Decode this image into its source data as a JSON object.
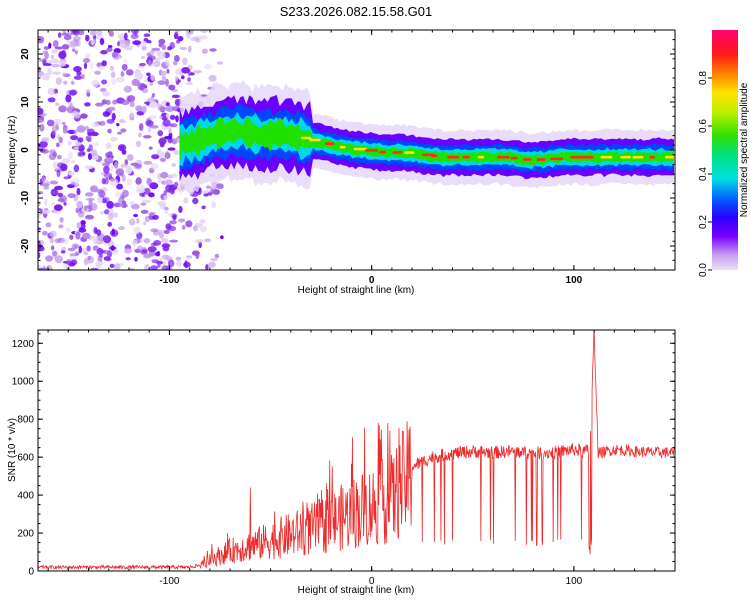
{
  "title": "S233.2026.082.15.58.G01",
  "colors": {
    "snr_line": "#ee2a2a",
    "frame": "#000000",
    "background": "#ffffff"
  },
  "chart_data": [
    {
      "type": "heatmap",
      "name": "spectrogram",
      "xlabel": "Height of straight line (km)",
      "ylabel": "Frequency (Hz)",
      "xlim": [
        -165,
        150
      ],
      "ylim": [
        -25,
        25
      ],
      "x_ticks": [
        -100,
        0,
        100
      ],
      "y_ticks": [
        -20,
        -10,
        0,
        10,
        20
      ],
      "colorbar": {
        "label": "Normalized spectral amplitude",
        "range": [
          0.0,
          1.0
        ],
        "ticks": [
          0.0,
          0.2,
          0.4,
          0.6,
          0.8
        ]
      },
      "ridge": {
        "description": "dominant frequency ridge vs height",
        "x": [
          -95,
          -85,
          -75,
          -65,
          -55,
          -45,
          -35,
          -25,
          -15,
          -5,
          5,
          15,
          25,
          35,
          45,
          55,
          65,
          75,
          85,
          95,
          105,
          115,
          125,
          135,
          150
        ],
        "frequency": [
          1.0,
          2.0,
          3.5,
          4.0,
          3.0,
          3.5,
          2.5,
          1.5,
          0.5,
          0.0,
          -0.5,
          -0.5,
          -1.0,
          -1.5,
          -1.5,
          -1.5,
          -1.5,
          -2.0,
          -2.0,
          -1.5,
          -1.5,
          -1.5,
          -1.5,
          -1.5,
          -1.5
        ]
      },
      "noise_region_x": [
        -165,
        -80
      ]
    },
    {
      "type": "line",
      "name": "snr",
      "xlabel": "Height of straight line (km)",
      "ylabel": "SNR (10 * v/v)",
      "xlim": [
        -165,
        150
      ],
      "ylim": [
        0,
        1270
      ],
      "x_ticks": [
        -100,
        0,
        100
      ],
      "y_ticks": [
        0,
        200,
        400,
        600,
        800,
        1000,
        1200
      ],
      "envelope": {
        "x": [
          -165,
          -150,
          -130,
          -110,
          -90,
          -85,
          -80,
          -70,
          -60,
          -50,
          -40,
          -30,
          -20,
          -10,
          0,
          10,
          20,
          30,
          40,
          50,
          60,
          70,
          80,
          90,
          100,
          105,
          108,
          110,
          112,
          120,
          130,
          140,
          150
        ],
        "y": [
          20,
          20,
          20,
          20,
          20,
          30,
          60,
          110,
          140,
          170,
          200,
          230,
          270,
          320,
          360,
          400,
          550,
          600,
          620,
          630,
          625,
          630,
          620,
          625,
          640,
          630,
          640,
          1270,
          620,
          640,
          630,
          625,
          625
        ]
      },
      "spikes": [
        {
          "x": -60,
          "y": 440
        },
        {
          "x": 8,
          "y": 780
        },
        {
          "x": 110,
          "y": 1270
        }
      ]
    }
  ]
}
